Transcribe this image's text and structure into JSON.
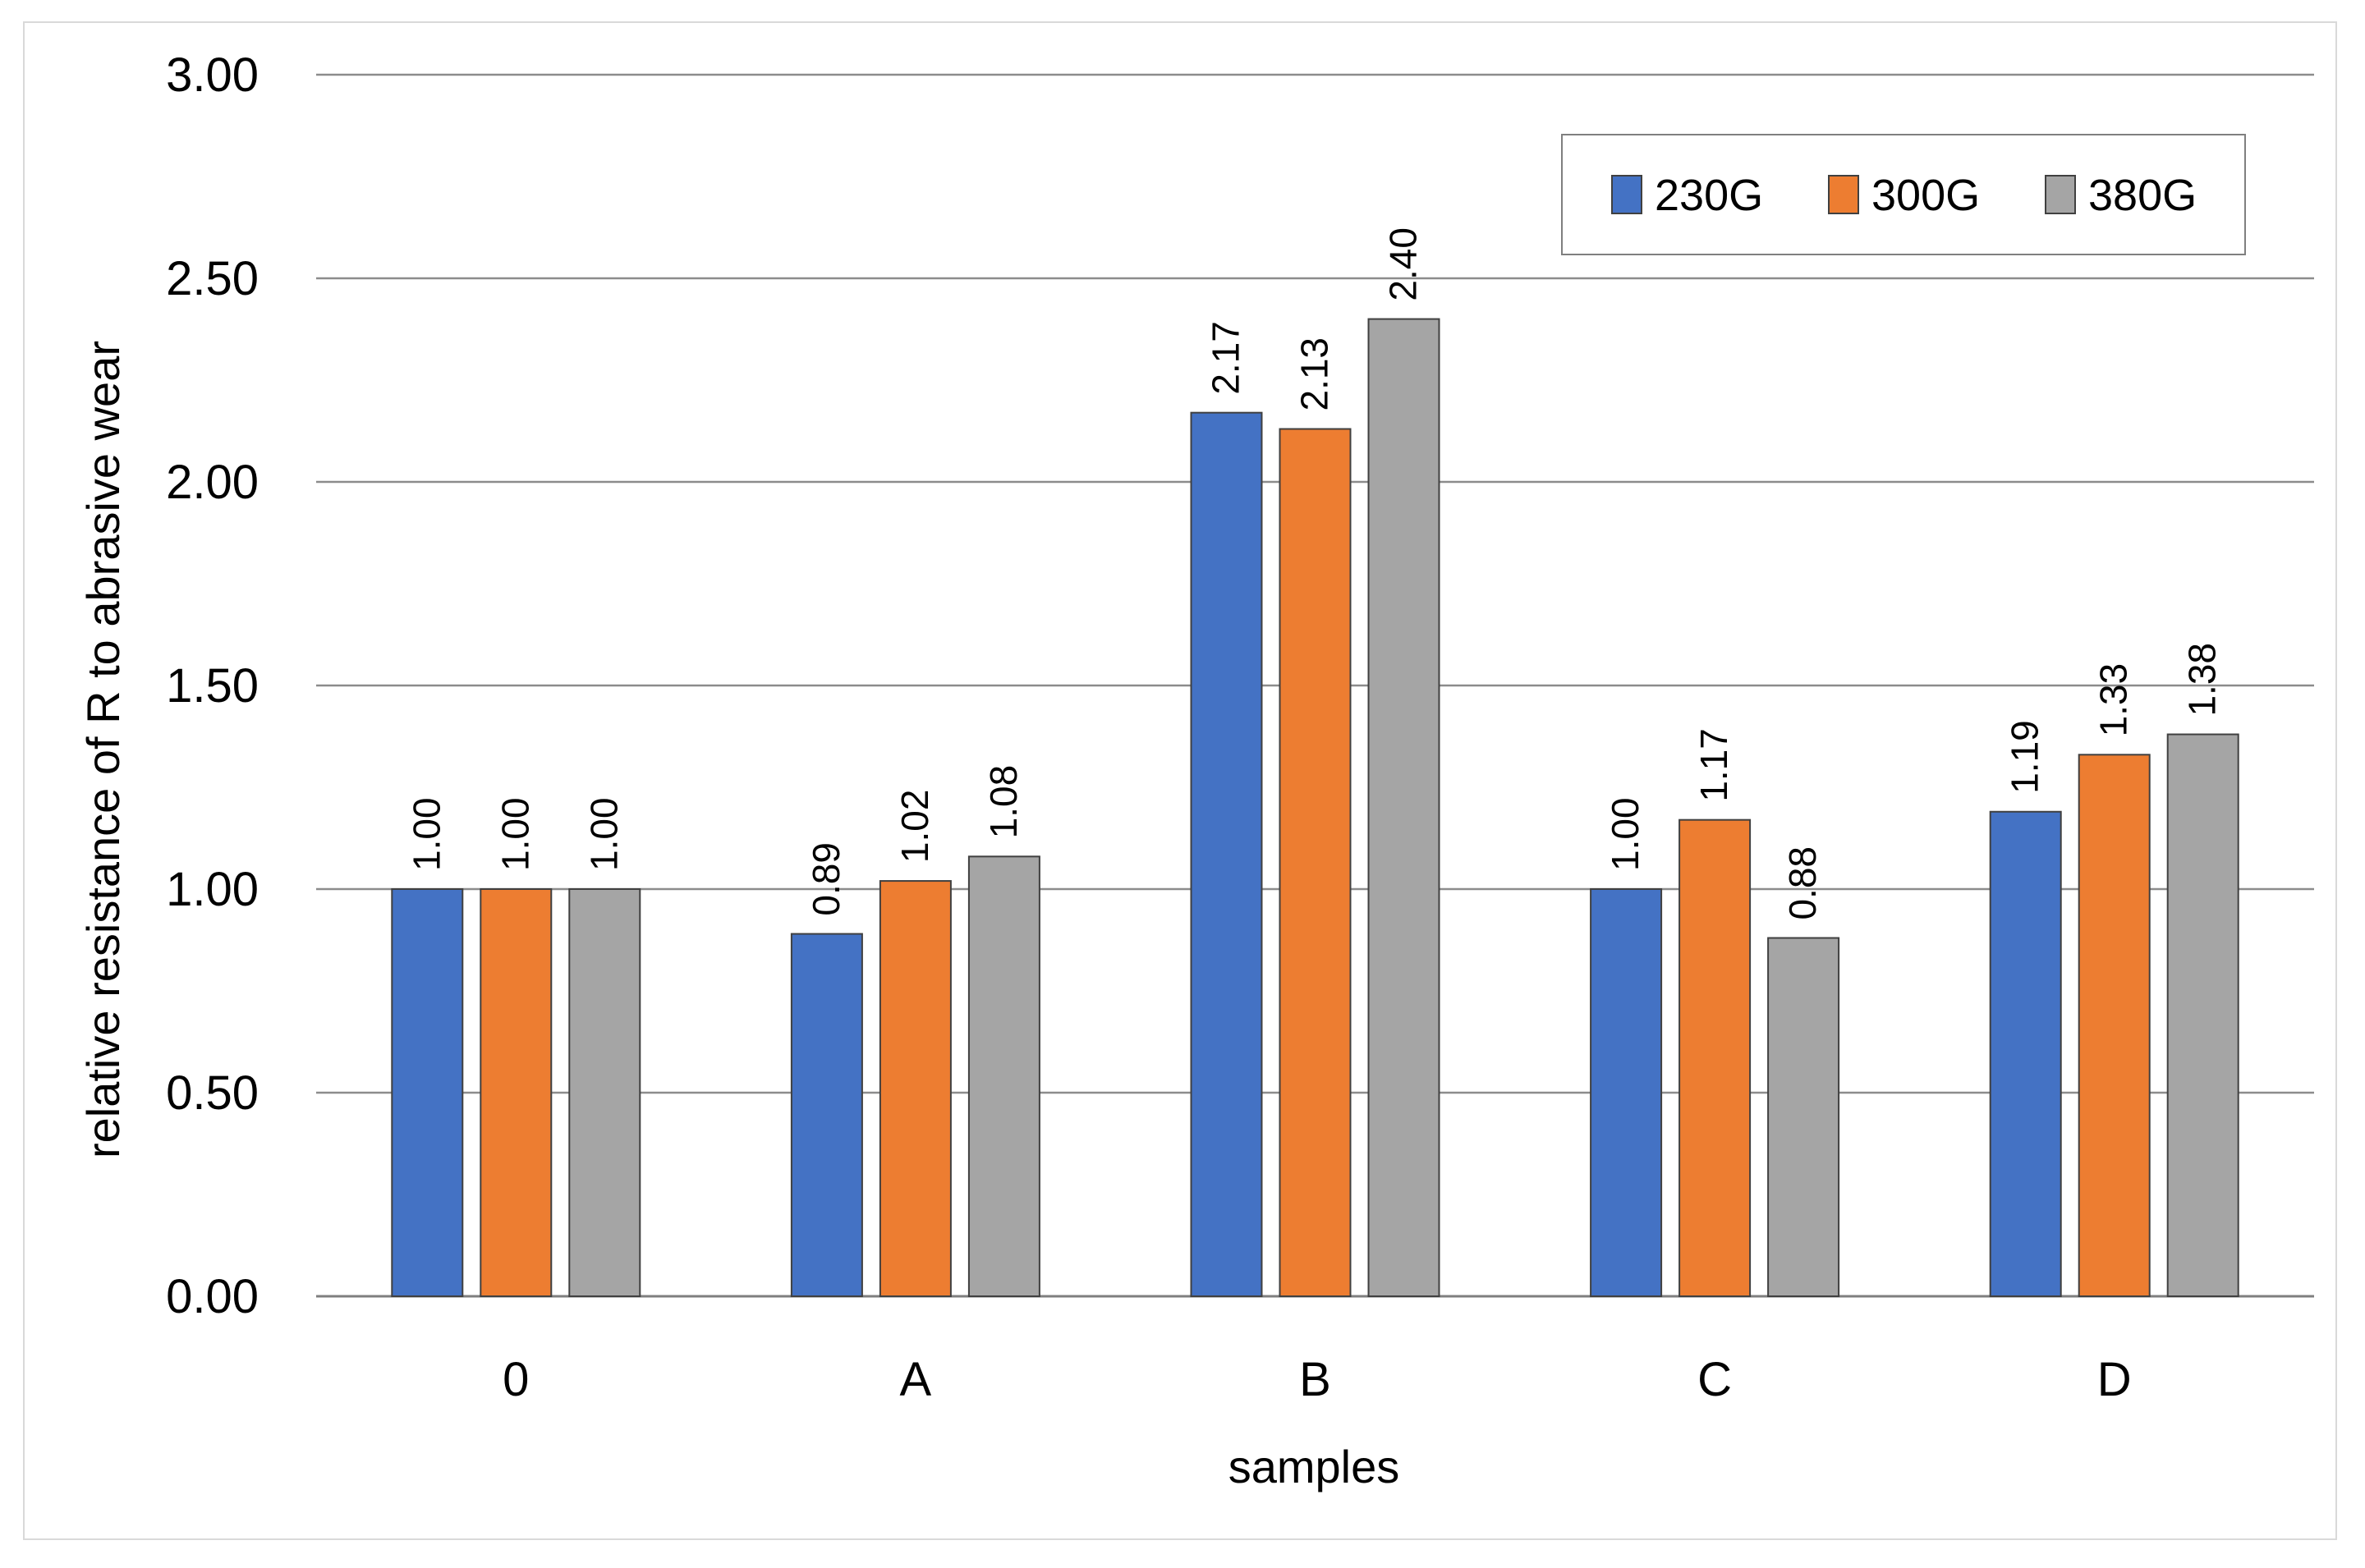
{
  "chart_data": {
    "type": "bar",
    "title": "",
    "xlabel": "samples",
    "ylabel": "relative resistance of R to abrasive wear",
    "ylim": [
      0,
      3
    ],
    "yticks": [
      "0.00",
      "0.50",
      "1.00",
      "1.50",
      "2.00",
      "2.50",
      "3.00"
    ],
    "grid": true,
    "legend_position": "top-right",
    "categories": [
      "0",
      "A",
      "B",
      "C",
      "D"
    ],
    "series": [
      {
        "name": "230G",
        "color": "#4472c4",
        "values": [
          1.0,
          0.89,
          2.17,
          1.0,
          1.19
        ],
        "labels": [
          "1.00",
          "0.89",
          "2.17",
          "1.00",
          "1.19"
        ]
      },
      {
        "name": "300G",
        "color": "#ed7d31",
        "values": [
          1.0,
          1.02,
          2.13,
          1.17,
          1.33
        ],
        "labels": [
          "1.00",
          "1.02",
          "2.13",
          "1.17",
          "1.33"
        ]
      },
      {
        "name": "380G",
        "color": "#a5a5a5",
        "values": [
          1.0,
          1.08,
          2.4,
          0.88,
          1.38
        ],
        "labels": [
          "1.00",
          "1.08",
          "2.40",
          "0.88",
          "1.38"
        ]
      }
    ]
  }
}
